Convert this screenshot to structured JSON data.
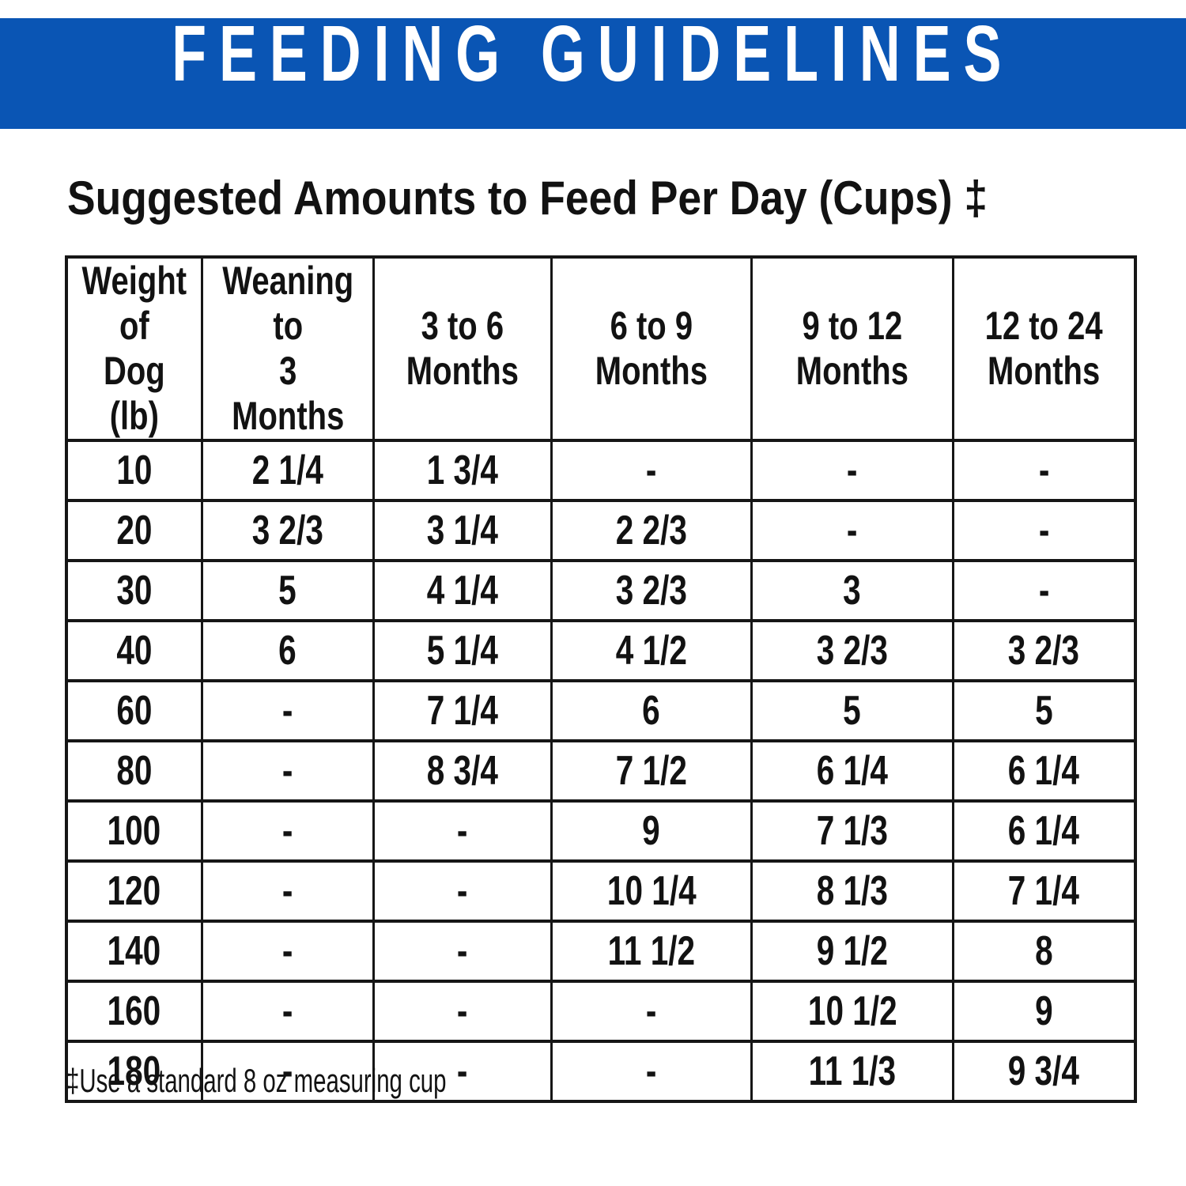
{
  "banner": {
    "title": "FEEDING GUIDELINES",
    "bg_color": "#0A55B4",
    "text_color": "#FFFFFF"
  },
  "subtitle": "Suggested Amounts to Feed Per Day (Cups) ‡",
  "table": {
    "columns": [
      "Weight of\nDog (lb)",
      "Weaning to\n3 Months",
      "3 to 6\nMonths",
      "6 to 9\nMonths",
      "9 to 12\nMonths",
      "12 to 24\nMonths"
    ],
    "rows": [
      [
        "10",
        "2 1/4",
        "1 3/4",
        "-",
        "-",
        "-"
      ],
      [
        "20",
        "3 2/3",
        "3 1/4",
        "2 2/3",
        "-",
        "-"
      ],
      [
        "30",
        "5",
        "4 1/4",
        "3 2/3",
        "3",
        "-"
      ],
      [
        "40",
        "6",
        "5 1/4",
        "4 1/2",
        "3 2/3",
        "3 2/3"
      ],
      [
        "60",
        "-",
        "7 1/4",
        "6",
        "5",
        "5"
      ],
      [
        "80",
        "-",
        "8 3/4",
        "7 1/2",
        "6 1/4",
        "6 1/4"
      ],
      [
        "100",
        "-",
        "-",
        "9",
        "7 1/3",
        "6 1/4"
      ],
      [
        "120",
        "-",
        "-",
        "10 1/4",
        "8 1/3",
        "7 1/4"
      ],
      [
        "140",
        "-",
        "-",
        "11 1/2",
        "9 1/2",
        "8"
      ],
      [
        "160",
        "-",
        "-",
        "-",
        "10 1/2",
        "9"
      ],
      [
        "180",
        "-",
        "-",
        "-",
        "11 1/3",
        "9 3/4"
      ]
    ]
  },
  "footnote": "‡Use a standard 8 oz measuring cup",
  "text_color": "#121212"
}
